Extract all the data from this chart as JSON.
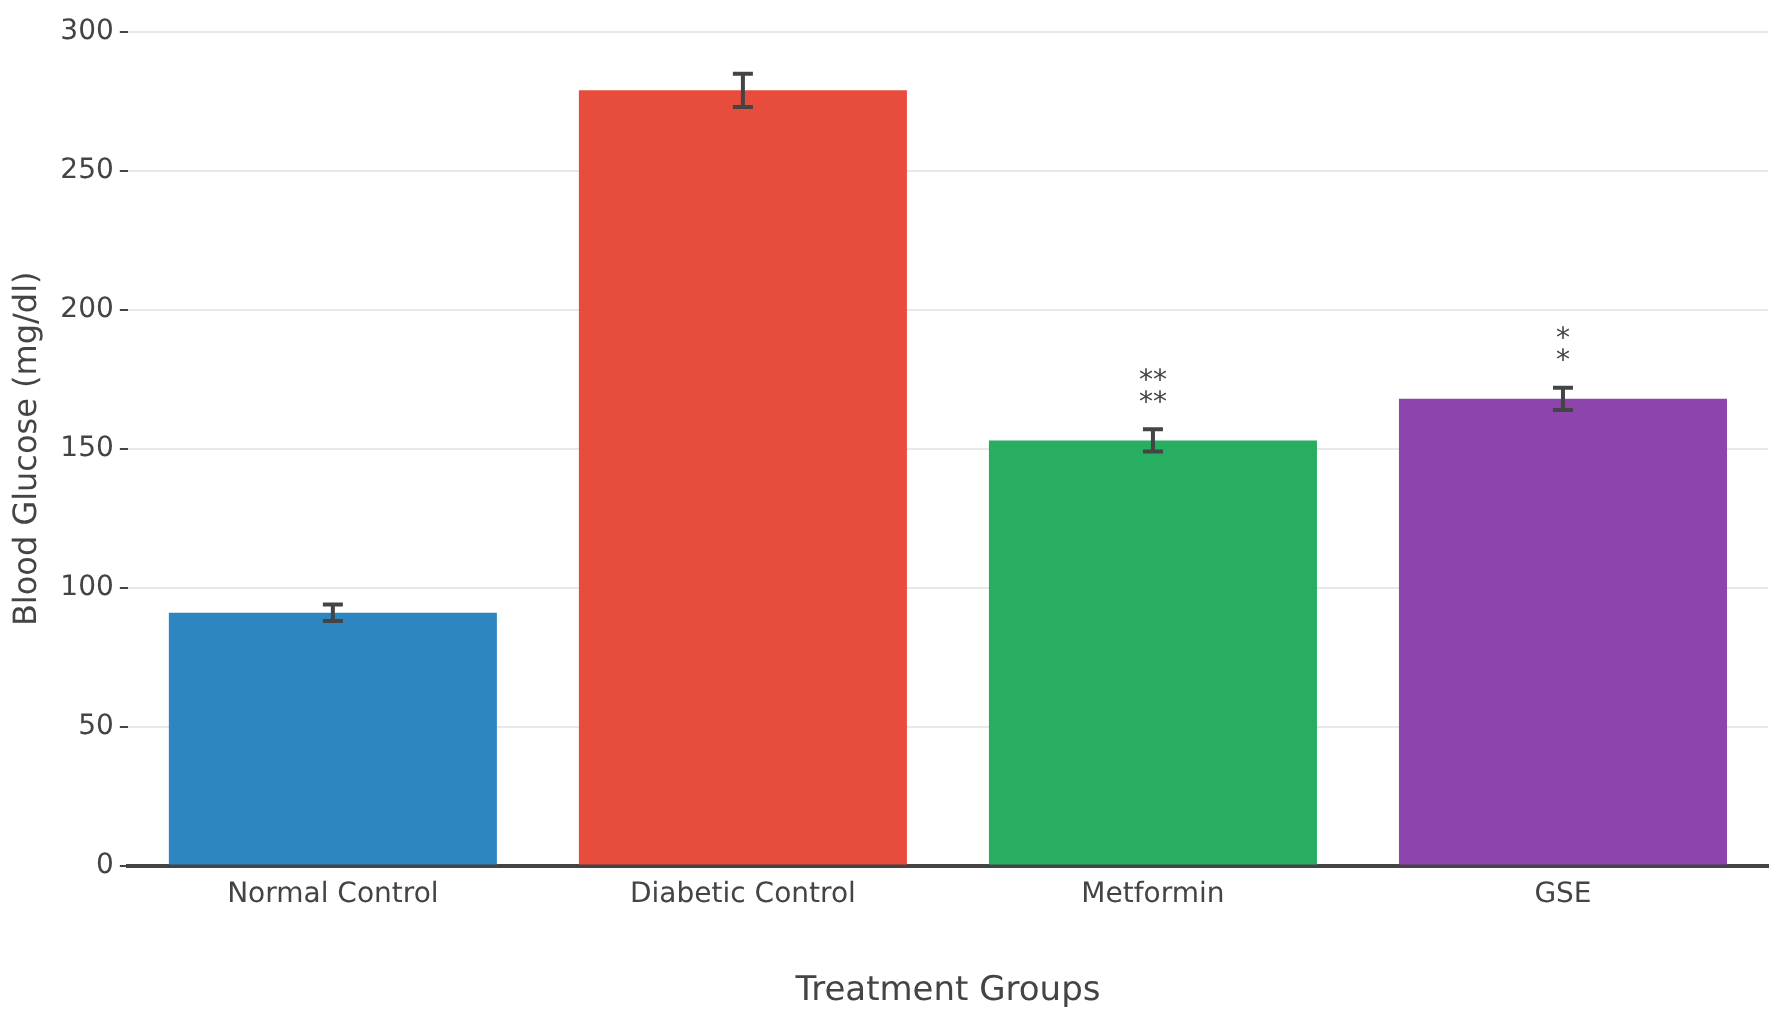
{
  "chart_data": {
    "type": "bar",
    "xlabel": "Treatment Groups",
    "ylabel": "Blood Glucose (mg/dl)",
    "categories": [
      "Normal Control",
      "Diabetic Control",
      "Metformin",
      "GSE"
    ],
    "values": [
      91,
      279,
      153,
      168
    ],
    "errors": [
      3,
      6,
      4,
      4
    ],
    "colors": [
      "#2e86c1",
      "#e74c3c",
      "#27ae60",
      "#8e44ad"
    ],
    "ylim": [
      0,
      300
    ],
    "yticks": [
      0,
      50,
      100,
      150,
      200,
      250,
      300
    ],
    "grid": "y",
    "legend": false,
    "value_labels": [
      null,
      null,
      "**\n**",
      "*\n*"
    ]
  }
}
